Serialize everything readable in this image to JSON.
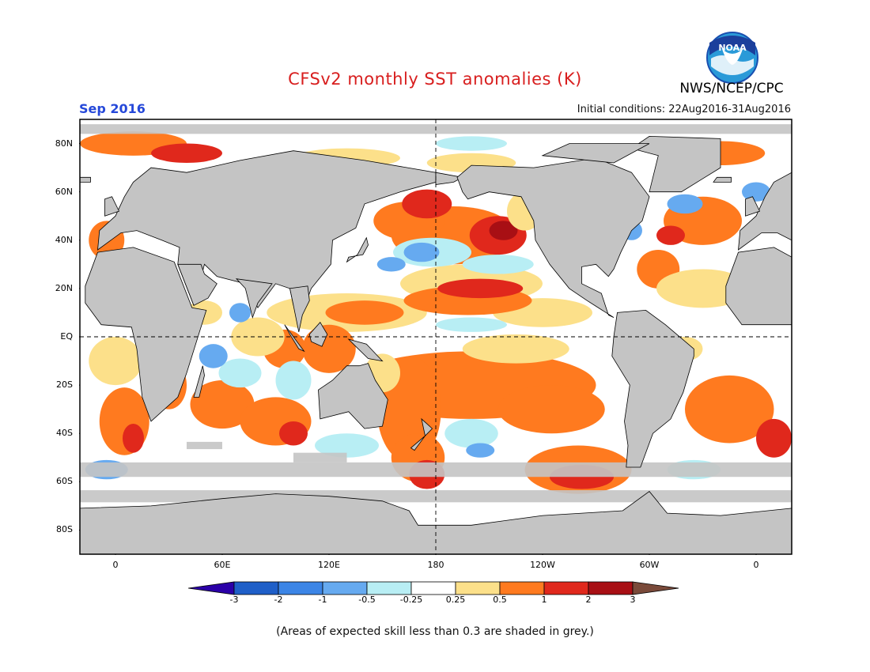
{
  "header": {
    "title": "CFSv2 monthly SST anomalies (K)",
    "organization": "NWS/NCEP/CPC",
    "logo_text": "NOAA",
    "month": "Sep 2016",
    "initial_conditions": "Initial conditions: 22Aug2016-31Aug2016"
  },
  "map": {
    "projection": "equirectangular",
    "longitude_range": [
      -20,
      380
    ],
    "latitude_range": [
      -90,
      90
    ],
    "land_color": "#c4c4c4",
    "low_skill_color": "#c4c4c4",
    "y_ticks": [
      {
        "lat": 80,
        "label": "80N"
      },
      {
        "lat": 60,
        "label": "60N"
      },
      {
        "lat": 40,
        "label": "40N"
      },
      {
        "lat": 20,
        "label": "20N"
      },
      {
        "lat": 0,
        "label": "EQ"
      },
      {
        "lat": -20,
        "label": "20S"
      },
      {
        "lat": -40,
        "label": "40S"
      },
      {
        "lat": -60,
        "label": "60S"
      },
      {
        "lat": -80,
        "label": "80S"
      }
    ],
    "x_ticks": [
      {
        "lon": 0,
        "label": "0"
      },
      {
        "lon": 60,
        "label": "60E"
      },
      {
        "lon": 120,
        "label": "120E"
      },
      {
        "lon": 180,
        "label": "180"
      },
      {
        "lon": 240,
        "label": "120W"
      },
      {
        "lon": 300,
        "label": "60W"
      },
      {
        "lon": 360,
        "label": "0"
      }
    ],
    "reference_lines": [
      "equator",
      "dateline"
    ]
  },
  "colorbar": {
    "labels": [
      "-3",
      "-2",
      "-1",
      "-0.5",
      "-0.25",
      "0.25",
      "0.5",
      "1",
      "2",
      "3"
    ],
    "colors": [
      "#2b00a8",
      "#1f5fc8",
      "#3c85e6",
      "#66aaf0",
      "#b8eef4",
      "#ffffff",
      "#fce08a",
      "#ff7a1f",
      "#e0281c",
      "#a80f14",
      "#7a4a3a"
    ]
  },
  "footnote": "(Areas of expected skill less than 0.3 are shaded in grey.)"
}
